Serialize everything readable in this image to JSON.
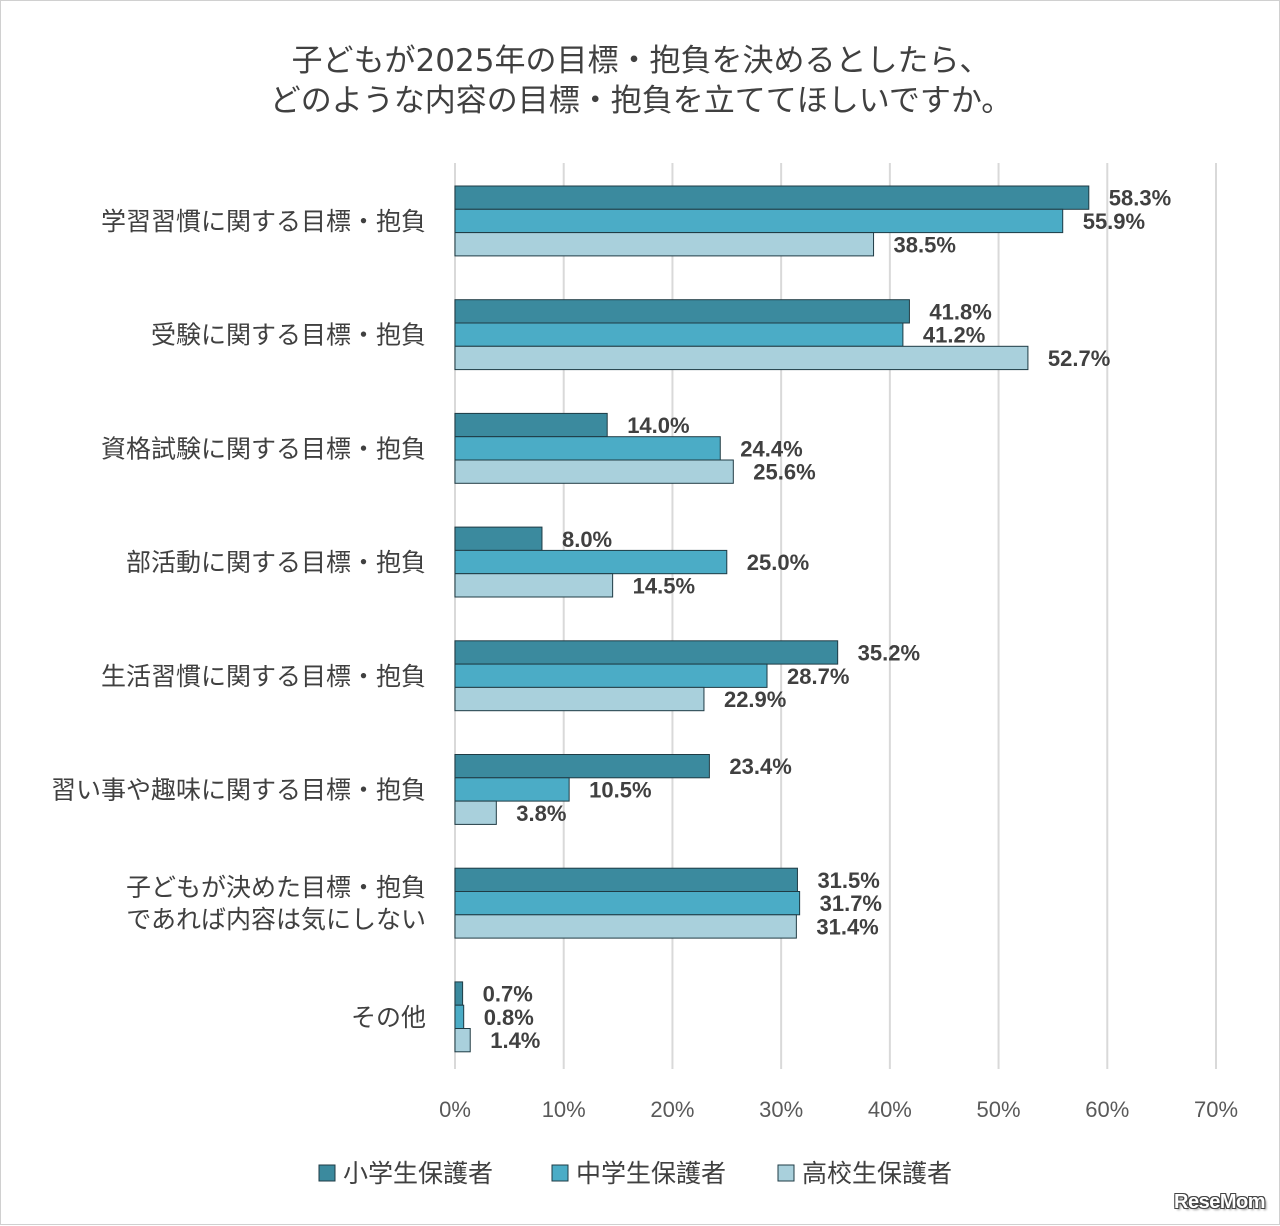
{
  "chart_data": {
    "type": "bar",
    "orientation": "horizontal",
    "title_lines": [
      "子どもが2025年の目標・抱負を決めるとしたら、",
      "どのような内容の目標・抱負を立ててほしいですか。"
    ],
    "categories": [
      [
        "学習習慣に関する目標・抱負"
      ],
      [
        "受験に関する目標・抱負"
      ],
      [
        "資格試験に関する目標・抱負"
      ],
      [
        "部活動に関する目標・抱負"
      ],
      [
        "生活習慣に関する目標・抱負"
      ],
      [
        "習い事や趣味に関する目標・抱負"
      ],
      [
        "子どもが決めた目標・抱負",
        "であれば内容は気にしない"
      ],
      [
        "その他"
      ]
    ],
    "series": [
      {
        "name": "小学生保護者",
        "color": "#3b8a9e",
        "values": [
          58.3,
          41.8,
          14.0,
          8.0,
          35.2,
          23.4,
          31.5,
          0.7
        ],
        "labels": [
          "58.3%",
          "41.8%",
          "14.0%",
          "8.0%",
          "35.2%",
          "23.4%",
          "31.5%",
          "0.7%"
        ]
      },
      {
        "name": "中学生保護者",
        "color": "#4bacc6",
        "values": [
          55.9,
          41.2,
          24.4,
          25.0,
          28.7,
          10.5,
          31.7,
          0.8
        ],
        "labels": [
          "55.9%",
          "41.2%",
          "24.4%",
          "25.0%",
          "28.7%",
          "10.5%",
          "31.7%",
          "0.8%"
        ]
      },
      {
        "name": "高校生保護者",
        "color": "#a9d0dc",
        "values": [
          38.5,
          52.7,
          25.6,
          14.5,
          22.9,
          3.8,
          31.4,
          1.4
        ],
        "labels": [
          "38.5%",
          "52.7%",
          "25.6%",
          "14.5%",
          "22.9%",
          "3.8%",
          "31.4%",
          "1.4%"
        ]
      }
    ],
    "xlim": [
      0,
      70
    ],
    "xticks": [
      0,
      10,
      20,
      30,
      40,
      50,
      60,
      70
    ],
    "xtick_labels": [
      "0%",
      "10%",
      "20%",
      "30%",
      "40%",
      "50%",
      "60%",
      "70%"
    ],
    "grid": true,
    "legend_position": "bottom"
  },
  "logo_text": "ReseMom"
}
